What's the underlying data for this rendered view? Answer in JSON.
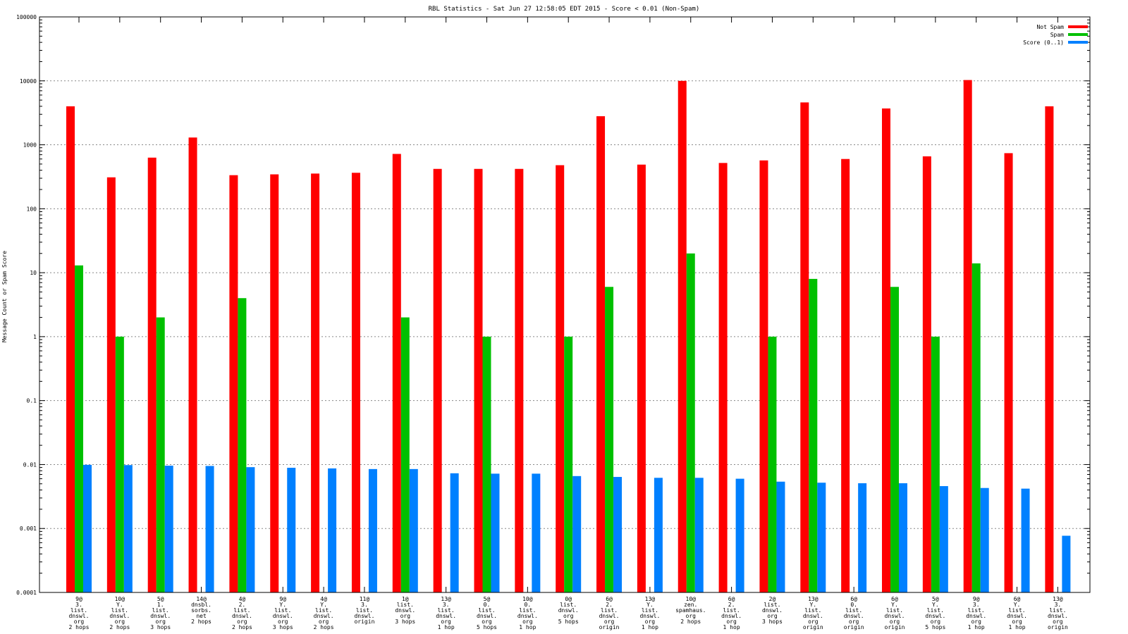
{
  "chart_data": {
    "type": "bar",
    "title": "RBL Statistics - Sat Jun 27 12:58:05 EDT 2015 - Score < 0.01 (Non-Spam)",
    "ylabel": "Message Count or Spam Score",
    "xlabel": "",
    "yscale": "log",
    "ylim": [
      0.0001,
      100000
    ],
    "yticks": [
      "0.0001",
      "0.001",
      "0.01",
      "0.1",
      "1",
      "10",
      "100",
      "1000",
      "10000",
      "100000"
    ],
    "grid": true,
    "legend_position": "top-right",
    "categories": [
      [
        "9@",
        "3.",
        "list.",
        "dnswl.",
        "org",
        "2 hops"
      ],
      [
        "10@",
        "Y.",
        "list.",
        "dnswl.",
        "org",
        "2 hops"
      ],
      [
        "5@",
        "1.",
        "list.",
        "dnswl.",
        "org",
        "3 hops"
      ],
      [
        "14@",
        "dnsbl.",
        "sorbs.",
        "net",
        "2 hops"
      ],
      [
        "4@",
        "2.",
        "list.",
        "dnswl.",
        "org",
        "2 hops"
      ],
      [
        "9@",
        "Y.",
        "list.",
        "dnswl.",
        "org",
        "3 hops"
      ],
      [
        "4@",
        "Y.",
        "list.",
        "dnswl.",
        "org",
        "2 hops"
      ],
      [
        "11@",
        "3.",
        "list.",
        "dnswl.",
        "origin"
      ],
      [
        "1@",
        "list.",
        "dnswl.",
        "org",
        "3 hops"
      ],
      [
        "13@",
        "3.",
        "list.",
        "dnswl.",
        "org",
        "1 hop"
      ],
      [
        "5@",
        "0.",
        "list.",
        "dnswl.",
        "org",
        "5 hops"
      ],
      [
        "10@",
        "0.",
        "list.",
        "dnswl.",
        "org",
        "1 hop"
      ],
      [
        "0@",
        "list.",
        "dnswl.",
        "org",
        "5 hops"
      ],
      [
        "6@",
        "2.",
        "list.",
        "dnswl.",
        "org",
        "origin"
      ],
      [
        "13@",
        "Y.",
        "list.",
        "dnswl.",
        "org",
        "1 hop"
      ],
      [
        "10@",
        "zen.",
        "spamhaus.",
        "org",
        "2 hops"
      ],
      [
        "6@",
        "2.",
        "list.",
        "dnswl.",
        "org",
        "1 hop"
      ],
      [
        "2@",
        "list.",
        "dnswl.",
        "org",
        "3 hops"
      ],
      [
        "13@",
        "Y.",
        "list.",
        "dnswl.",
        "org",
        "origin"
      ],
      [
        "6@",
        "0.",
        "list.",
        "dnswl.",
        "org",
        "origin"
      ],
      [
        "6@",
        "Y.",
        "list.",
        "dnswl.",
        "org",
        "origin"
      ],
      [
        "5@",
        "Y.",
        "list.",
        "dnswl.",
        "org",
        "5 hops"
      ],
      [
        "9@",
        "3.",
        "list.",
        "dnswl.",
        "org",
        "1 hop"
      ],
      [
        "6@",
        "Y.",
        "list.",
        "dnswl.",
        "org",
        "1 hop"
      ],
      [
        "13@",
        "3.",
        "list.",
        "dnswl.",
        "org",
        "origin"
      ]
    ],
    "series": [
      {
        "name": "Not Spam",
        "color": "#ff0000",
        "values": [
          4000,
          310,
          630,
          1300,
          335,
          345,
          355,
          365,
          720,
          420,
          420,
          420,
          480,
          2800,
          490,
          10000,
          520,
          570,
          4600,
          600,
          3700,
          660,
          10300,
          740,
          4000
        ]
      },
      {
        "name": "Spam",
        "color": "#00c000",
        "values": [
          13,
          1,
          2,
          null,
          4,
          null,
          null,
          null,
          2,
          null,
          1,
          null,
          1,
          6,
          null,
          20,
          null,
          1,
          8,
          null,
          6,
          1,
          14,
          null,
          null
        ]
      },
      {
        "name": "Score (0..1)",
        "color": "#0080ff",
        "values": [
          0.0099,
          0.0098,
          0.0096,
          0.0095,
          0.0091,
          0.0089,
          0.0087,
          0.0085,
          0.0085,
          0.0073,
          0.0072,
          0.0072,
          0.0066,
          0.0064,
          0.0062,
          0.0062,
          0.006,
          0.0054,
          0.0052,
          0.0051,
          0.0051,
          0.0046,
          0.0043,
          0.0042,
          0.00077
        ]
      }
    ]
  }
}
